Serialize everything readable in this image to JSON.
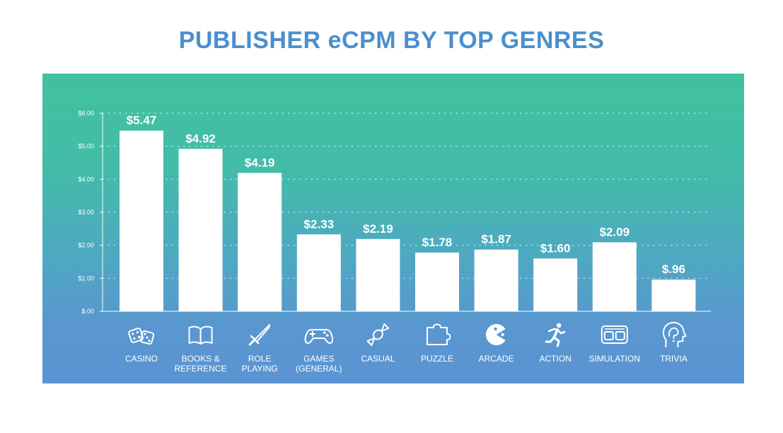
{
  "colors": {
    "title": "#4a8fcd",
    "bar": "#ffffff",
    "panel_top": "#41c1a0",
    "panel_bottom": "#5b94d2"
  },
  "chart_data": {
    "type": "bar",
    "title": "PUBLISHER eCPM BY TOP GENRES",
    "xlabel": "",
    "ylabel": "",
    "ylim": [
      0,
      6
    ],
    "yticks": [
      0,
      1,
      2,
      3,
      4,
      5,
      6
    ],
    "ytick_labels": [
      "$.00",
      "$1.00",
      "$2.00",
      "$3.00",
      "$4.00",
      "$5.00",
      "$6.00"
    ],
    "grid": true,
    "categories": [
      [
        "CASINO"
      ],
      [
        "BOOKS &",
        "REFERENCE"
      ],
      [
        "ROLE",
        "PLAYING"
      ],
      [
        "GAMES",
        "(GENERAL)"
      ],
      [
        "CASUAL"
      ],
      [
        "PUZZLE"
      ],
      [
        "ARCADE"
      ],
      [
        "ACTION"
      ],
      [
        "SIMULATION"
      ],
      [
        "TRIVIA"
      ]
    ],
    "values": [
      5.47,
      4.92,
      4.19,
      2.33,
      2.19,
      1.78,
      1.87,
      1.6,
      2.09,
      0.96
    ],
    "value_labels": [
      "$5.47",
      "$4.92",
      "$4.19",
      "$2.33",
      "$2.19",
      "$1.78",
      "$1.87",
      "$1.60",
      "$2.09",
      "$.96"
    ],
    "icons": [
      "dice-icon",
      "book-icon",
      "sword-icon",
      "gamepad-icon",
      "candy-icon",
      "puzzle-icon",
      "pacman-icon",
      "runner-icon",
      "vr-headset-icon",
      "head-icon"
    ]
  }
}
